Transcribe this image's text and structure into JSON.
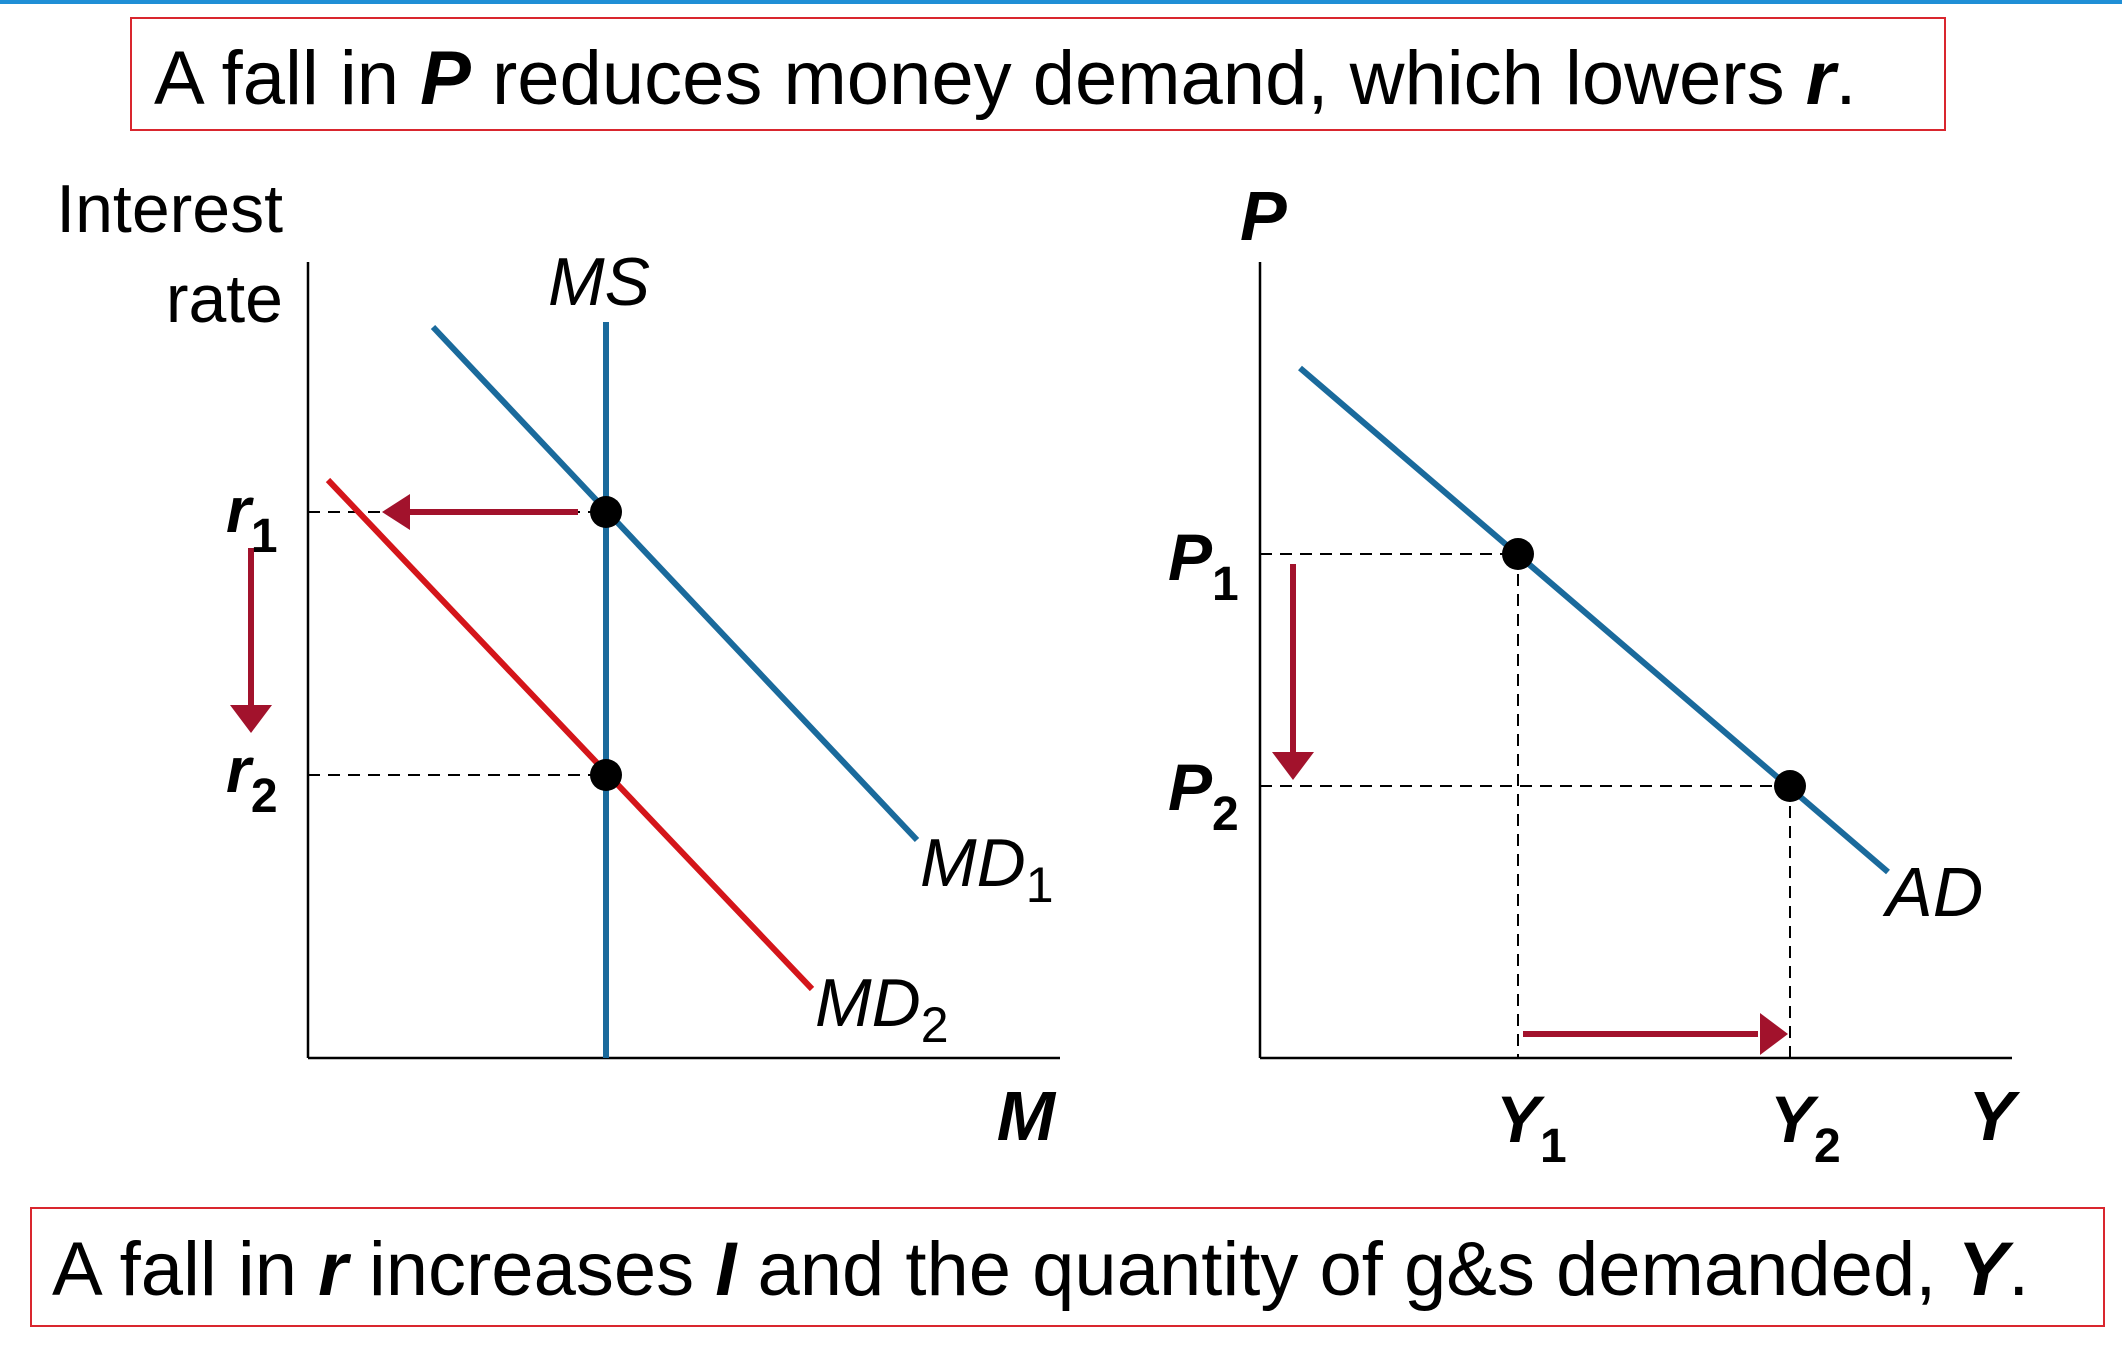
{
  "caption_top": {
    "pre": "A fall in ",
    "v1": "P",
    "mid": " reduces money demand, which lowers ",
    "v2": "r",
    "post": "."
  },
  "caption_bottom": {
    "pre": "A fall in ",
    "v1": "r",
    "mid1": " increases ",
    "v2": "I",
    "mid2": " and the quantity of g&s demanded, ",
    "v3": "Y",
    "post": "."
  },
  "left_graph": {
    "ylabel_line1": "Interest",
    "ylabel_line2": "rate",
    "xlabel": "M",
    "ms_label": "MS",
    "md1_label": "MD",
    "md1_sub": "1",
    "md2_label": "MD",
    "md2_sub": "2",
    "r1_label": "r",
    "r1_sub": "1",
    "r2_label": "r",
    "r2_sub": "2"
  },
  "right_graph": {
    "ylabel": "P",
    "xlabel": "Y",
    "ad_label": "AD",
    "p1_label": "P",
    "p1_sub": "1",
    "p2_label": "P",
    "p2_sub": "2",
    "y1_label": "Y",
    "y1_sub": "1",
    "y2_label": "Y",
    "y2_sub": "2"
  },
  "colors": {
    "blue_curve": "#1a6a9c",
    "red_curve": "#d4151a",
    "arrow": "#a2122c",
    "caption_border": "#d9262e",
    "accent_line": "#1f8fd6"
  }
}
